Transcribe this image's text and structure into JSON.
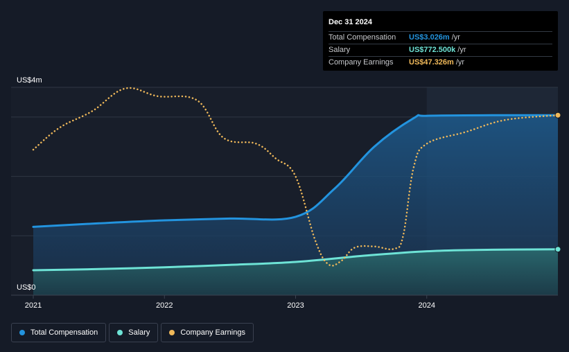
{
  "tooltip": {
    "date": "Dec 31 2024",
    "rows": [
      {
        "label": "Total Compensation",
        "value": "US$3.026m",
        "unit": "/yr",
        "color": "#2394df"
      },
      {
        "label": "Salary",
        "value": "US$772.500k",
        "unit": "/yr",
        "color": "#6ee3d6"
      },
      {
        "label": "Company Earnings",
        "value": "US$47.326m",
        "unit": "/yr",
        "color": "#f0b95a"
      }
    ]
  },
  "legend": [
    {
      "label": "Total Compensation",
      "color": "#2394df"
    },
    {
      "label": "Salary",
      "color": "#6ee3d6"
    },
    {
      "label": "Company Earnings",
      "color": "#f0b95a"
    }
  ],
  "chart_data": {
    "type": "line",
    "ylabel_top": "US$4m",
    "ylabel_bottom": "US$0",
    "ylim": [
      0,
      3.5
    ],
    "xlim": [
      2021.0,
      2025.0
    ],
    "x_ticks": [
      {
        "x": 2021,
        "label": "2021"
      },
      {
        "x": 2022,
        "label": "2022"
      },
      {
        "x": 2023,
        "label": "2023"
      },
      {
        "x": 2024,
        "label": "2024"
      }
    ],
    "gridlines_y": [
      1.0,
      2.0,
      3.0,
      3.5
    ],
    "forecast_start": 2024.0,
    "series": [
      {
        "name": "Total Compensation",
        "color": "#2394df",
        "style": "solid",
        "unit": "US$m",
        "points": [
          [
            2021.0,
            1.15
          ],
          [
            2021.5,
            1.21
          ],
          [
            2022.0,
            1.26
          ],
          [
            2022.5,
            1.29
          ],
          [
            2023.0,
            1.32
          ],
          [
            2023.3,
            1.8
          ],
          [
            2023.6,
            2.5
          ],
          [
            2023.9,
            2.98
          ],
          [
            2024.0,
            3.02
          ],
          [
            2024.5,
            3.03
          ],
          [
            2025.0,
            3.03
          ]
        ]
      },
      {
        "name": "Salary",
        "color": "#6ee3d6",
        "style": "solid",
        "unit": "US$m",
        "points": [
          [
            2021.0,
            0.42
          ],
          [
            2021.5,
            0.44
          ],
          [
            2022.0,
            0.47
          ],
          [
            2022.5,
            0.51
          ],
          [
            2023.0,
            0.56
          ],
          [
            2023.5,
            0.66
          ],
          [
            2024.0,
            0.74
          ],
          [
            2024.5,
            0.765
          ],
          [
            2025.0,
            0.7725
          ]
        ]
      },
      {
        "name": "Company Earnings",
        "color": "#f0b95a",
        "style": "dotted",
        "unit": "scaled",
        "points": [
          [
            2021.0,
            2.45
          ],
          [
            2021.2,
            2.82
          ],
          [
            2021.45,
            3.1
          ],
          [
            2021.7,
            3.48
          ],
          [
            2021.95,
            3.35
          ],
          [
            2022.25,
            3.28
          ],
          [
            2022.45,
            2.65
          ],
          [
            2022.7,
            2.55
          ],
          [
            2022.85,
            2.3
          ],
          [
            2023.0,
            2.0
          ],
          [
            2023.15,
            0.92
          ],
          [
            2023.25,
            0.52
          ],
          [
            2023.35,
            0.58
          ],
          [
            2023.45,
            0.8
          ],
          [
            2023.6,
            0.82
          ],
          [
            2023.75,
            0.78
          ],
          [
            2023.82,
            1.0
          ],
          [
            2023.9,
            2.15
          ],
          [
            2024.0,
            2.55
          ],
          [
            2024.3,
            2.75
          ],
          [
            2024.6,
            2.95
          ],
          [
            2025.0,
            3.03
          ]
        ]
      }
    ]
  }
}
